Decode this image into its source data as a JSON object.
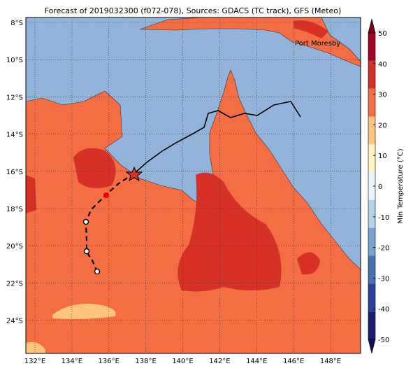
{
  "title": "Forecast of 2019032300 (f072-078), Sources: GDACS (TC track), GFS (Meteo)",
  "map": {
    "lon_ticks": [
      {
        "value": 132,
        "label": "132°E"
      },
      {
        "value": 134,
        "label": "134°E"
      },
      {
        "value": 136,
        "label": "136°E"
      },
      {
        "value": 138,
        "label": "138°E"
      },
      {
        "value": 140,
        "label": "140°E"
      },
      {
        "value": 142,
        "label": "142°E"
      },
      {
        "value": 144,
        "label": "144°E"
      },
      {
        "value": 146,
        "label": "146°E"
      },
      {
        "value": 148,
        "label": "148°E"
      }
    ],
    "lat_ticks": [
      {
        "value": 8,
        "label": "8°S"
      },
      {
        "value": 10,
        "label": "10°S"
      },
      {
        "value": 12,
        "label": "12°S"
      },
      {
        "value": 14,
        "label": "14°S"
      },
      {
        "value": 16,
        "label": "16°S"
      },
      {
        "value": 18,
        "label": "18°S"
      },
      {
        "value": 20,
        "label": "20°S"
      },
      {
        "value": 22,
        "label": "22°S"
      },
      {
        "value": 24,
        "label": "24°S"
      }
    ],
    "place_label": "Port Moresby"
  },
  "colorbar": {
    "label": "Min Temperature (°C)",
    "ticks": [
      -50,
      -40,
      -30,
      -20,
      -10,
      0,
      10,
      20,
      30,
      40,
      50
    ],
    "colors": [
      "#1c1c73",
      "#2b3f9c",
      "#4a72b3",
      "#7aa2cf",
      "#b3d3e8",
      "#e8f4f8",
      "#fff3c0",
      "#fdc57c",
      "#f46d43",
      "#d73027",
      "#a50026"
    ],
    "under_color": "#14145a",
    "over_color": "#7a0020"
  }
}
